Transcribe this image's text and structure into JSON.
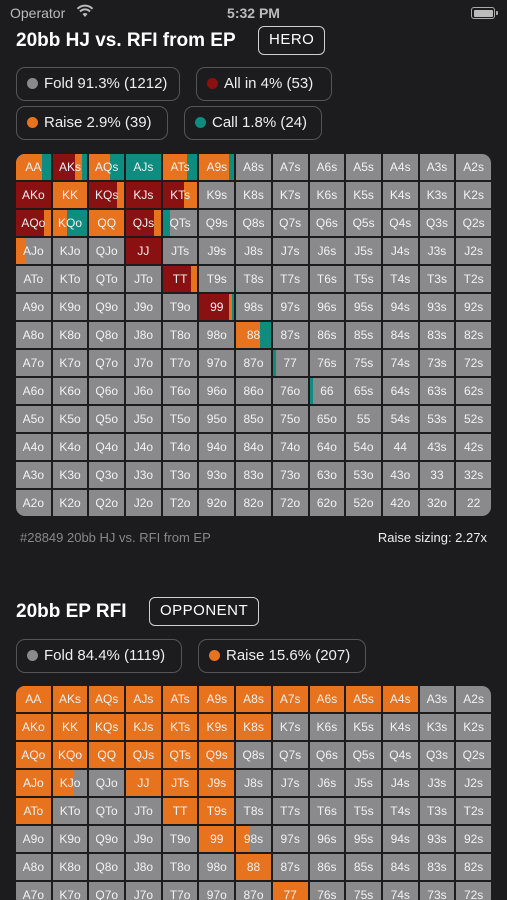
{
  "status_bar": {
    "carrier": "Operator",
    "time": "5:32 PM"
  },
  "colors": {
    "fold": "#8a8a8c",
    "raise": "#e8731f",
    "allin": "#8a1111",
    "call": "#0e8c80"
  },
  "section1": {
    "title": "20bb HJ vs. RFI  from EP",
    "tag": "HERO",
    "legend": [
      {
        "key": "fold",
        "label": "Fold 91.3% (1212)"
      },
      {
        "key": "allin",
        "label": "All in 4% (53)"
      },
      {
        "key": "raise",
        "label": "Raise 2.9% (39)"
      },
      {
        "key": "call",
        "label": "Call 1.8% (24)"
      }
    ],
    "footer_id": "#28849 20bb HJ vs. RFI  from EP",
    "raise_sizing": "Raise sizing: 2.27x",
    "cells": {
      "AA": {
        "raise": 0.75,
        "call": 0.25
      },
      "AKs": {
        "allin": 0.65,
        "raise": 0.2,
        "call": 0.15
      },
      "AQs": {
        "raise": 0.6,
        "call": 0.4
      },
      "KJs": {
        "allin": 1.0
      },
      "AJs": {
        "call": 1.0
      },
      "ATs": {
        "raise": 0.7,
        "call": 0.3
      },
      "A9s": {
        "raise": 0.85,
        "call": 0.15
      },
      "AKo": {
        "allin": 1.0
      },
      "KK": {
        "raise": 1.0
      },
      "KQs": {
        "allin": 0.8,
        "raise": 0.2
      },
      "KTs": {
        "allin": 0.6,
        "raise": 0.4
      },
      "AQo": {
        "allin": 0.8,
        "raise": 0.2
      },
      "KQo": {
        "raise": 0.4,
        "call": 0.6
      },
      "QQ": {
        "raise": 1.0
      },
      "QJs": {
        "allin": 0.8,
        "raise": 0.2
      },
      "QTs": {
        "call": 0.2
      },
      "AJo": {
        "raise": 0.3
      },
      "JJ": {
        "allin": 1.0
      },
      "TT": {
        "allin": 0.8,
        "raise": 0.2
      },
      "99": {
        "allin": 0.85,
        "raise": 0.1,
        "call": 0.05
      },
      "88": {
        "raise": 0.7,
        "call": 0.3
      },
      "77": {
        "call": 0.1
      },
      "66": {
        "call": 0.1
      }
    }
  },
  "section2": {
    "title": "20bb EP RFI",
    "tag": "OPPONENT",
    "legend": [
      {
        "key": "fold",
        "label": "Fold 84.4% (1119)"
      },
      {
        "key": "raise",
        "label": "Raise 15.6% (207)"
      }
    ],
    "cells": {
      "AA": {
        "raise": 1.0
      },
      "AKs": {
        "raise": 1.0
      },
      "AQs": {
        "raise": 1.0
      },
      "AJs": {
        "raise": 1.0
      },
      "ATs": {
        "raise": 1.0
      },
      "A9s": {
        "raise": 1.0
      },
      "A8s": {
        "raise": 1.0
      },
      "A7s": {
        "raise": 1.0
      },
      "A6s": {
        "raise": 1.0
      },
      "A5s": {
        "raise": 1.0
      },
      "A4s": {
        "raise": 1.0
      },
      "AKo": {
        "raise": 1.0
      },
      "KK": {
        "raise": 1.0
      },
      "KQs": {
        "raise": 1.0
      },
      "KJs": {
        "raise": 1.0
      },
      "KTs": {
        "raise": 1.0
      },
      "K9s": {
        "raise": 1.0
      },
      "K8s": {
        "raise": 1.0
      },
      "AQo": {
        "raise": 1.0
      },
      "KQo": {
        "raise": 1.0
      },
      "QQ": {
        "raise": 1.0
      },
      "QJs": {
        "raise": 1.0
      },
      "QTs": {
        "raise": 1.0
      },
      "Q9s": {
        "raise": 1.0
      },
      "AJo": {
        "raise": 1.0
      },
      "KJo": {
        "raise": 0.6
      },
      "JJ": {
        "raise": 1.0
      },
      "JTs": {
        "raise": 1.0
      },
      "J9s": {
        "raise": 1.0
      },
      "ATo": {
        "raise": 1.0
      },
      "TT": {
        "raise": 1.0
      },
      "T9s": {
        "raise": 1.0
      },
      "99": {
        "raise": 1.0
      },
      "98s": {
        "raise": 0.4
      },
      "88": {
        "raise": 1.0
      },
      "77": {
        "raise": 1.0
      }
    }
  }
}
